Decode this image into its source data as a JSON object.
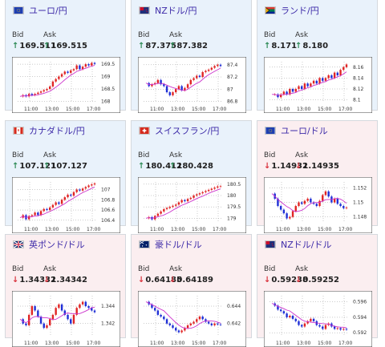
{
  "arrows": {
    "up": "↑",
    "down": "↓"
  },
  "colors": {
    "up_card_bg": "#e9f2fb",
    "down_card_bg": "#fbeef0",
    "title_color": "#3d2aa8",
    "candle_up": "#e02424",
    "candle_down": "#1f2fd6",
    "ma_line": "#cc33cc"
  },
  "labels": {
    "bid": "Bid",
    "ask": "Ask"
  },
  "pairs": [
    {
      "name": "ユーロ/円",
      "flag": "eu-jp-flag-icon",
      "direction": "up",
      "bid": "169.511",
      "ask": "169.515",
      "chart": {
        "xticks": [
          "11:00",
          "13:00",
          "15:00",
          "17:00"
        ],
        "yticks": [
          "169.5",
          "169",
          "168.5",
          "168"
        ],
        "ymin": 167.95,
        "ymax": 169.6,
        "trend": [
          168.2,
          168.25,
          168.2,
          168.3,
          168.25,
          168.3,
          168.35,
          168.4,
          168.45,
          168.5,
          168.6,
          168.8,
          168.9,
          169.0,
          169.1,
          169.2,
          169.15,
          169.25,
          169.3,
          169.45,
          169.3,
          169.4,
          169.5,
          169.45,
          169.55,
          169.51
        ]
      }
    },
    {
      "name": "NZドル/円",
      "flag": "nz-jp-flag-icon",
      "direction": "up",
      "bid": "87.375",
      "ask": "87.382",
      "chart": {
        "xticks": [
          "11:00",
          "13:00",
          "15:00",
          "17:00"
        ],
        "yticks": [
          "87.4",
          "87.2",
          "87",
          "86.8"
        ],
        "ymin": 86.78,
        "ymax": 87.45,
        "trend": [
          87.1,
          87.05,
          87.08,
          87.1,
          87.15,
          87.08,
          87.05,
          86.95,
          86.9,
          86.95,
          87.0,
          87.05,
          86.98,
          87.02,
          87.08,
          87.15,
          87.18,
          87.22,
          87.2,
          87.28,
          87.3,
          87.32,
          87.35,
          87.38,
          87.4,
          87.38
        ]
      }
    },
    {
      "name": "ランド/円",
      "flag": "za-jp-flag-icon",
      "direction": "up",
      "bid": "8.171",
      "ask": "8.180",
      "chart": {
        "xticks": [
          "11:00",
          "13:00",
          "15:00",
          "17:00"
        ],
        "yticks": [
          "8.16",
          "8.14",
          "8.12",
          "8.1"
        ],
        "ymin": 8.095,
        "ymax": 8.17,
        "trend": [
          8.11,
          8.11,
          8.105,
          8.11,
          8.115,
          8.11,
          8.12,
          8.115,
          8.12,
          8.125,
          8.12,
          8.13,
          8.125,
          8.13,
          8.135,
          8.13,
          8.14,
          8.135,
          8.14,
          8.145,
          8.14,
          8.15,
          8.145,
          8.155,
          8.16,
          8.165
        ]
      }
    },
    {
      "name": "カナダドル/円",
      "flag": "ca-jp-flag-icon",
      "direction": "up",
      "bid": "107.121",
      "ask": "107.127",
      "chart": {
        "xticks": [
          "11:00",
          "13:00",
          "15:00",
          "17:00"
        ],
        "yticks": [
          "107",
          "106.8",
          "106.6",
          "106.4"
        ],
        "ymin": 106.35,
        "ymax": 107.15,
        "trend": [
          106.45,
          106.5,
          106.42,
          106.48,
          106.5,
          106.55,
          106.5,
          106.58,
          106.62,
          106.6,
          106.65,
          106.7,
          106.75,
          106.72,
          106.8,
          106.85,
          106.9,
          106.88,
          106.95,
          107.0,
          106.98,
          107.02,
          107.05,
          107.08,
          107.1,
          107.12
        ]
      }
    },
    {
      "name": "スイスフラン/円",
      "flag": "ch-jp-flag-icon",
      "direction": "up",
      "bid": "180.412",
      "ask": "180.428",
      "chart": {
        "xticks": [
          "11:00",
          "13:00",
          "15:00",
          "17:00"
        ],
        "yticks": [
          "180.5",
          "180",
          "179.5",
          "179"
        ],
        "ymin": 178.8,
        "ymax": 180.6,
        "trend": [
          179.0,
          179.05,
          178.95,
          179.1,
          179.2,
          179.3,
          179.4,
          179.45,
          179.5,
          179.55,
          179.6,
          179.7,
          179.8,
          179.75,
          179.85,
          179.9,
          180.0,
          180.05,
          180.1,
          180.15,
          180.2,
          180.25,
          180.3,
          180.35,
          180.4,
          180.41
        ]
      }
    },
    {
      "name": "ユーロ/ドル",
      "flag": "eu-us-flag-icon",
      "direction": "down",
      "bid": "1.14932",
      "ask": "1.14935",
      "chart": {
        "xticks": [
          "11:00",
          "13:00",
          "15:00",
          "17:00"
        ],
        "yticks": [
          "1.152",
          "1.15",
          "1.148"
        ],
        "ymin": 1.1472,
        "ymax": 1.1528,
        "trend": [
          1.1512,
          1.1505,
          1.1495,
          1.149,
          1.1485,
          1.1478,
          1.148,
          1.1488,
          1.1495,
          1.15,
          1.1498,
          1.1502,
          1.1505,
          1.15,
          1.1498,
          1.1495,
          1.1502,
          1.151,
          1.1515,
          1.1508,
          1.15,
          1.1505,
          1.1498,
          1.1495,
          1.1492,
          1.1493
        ]
      }
    },
    {
      "name": "英ポンド/ドル",
      "flag": "gb-us-flag-icon",
      "direction": "down",
      "bid": "1.34332",
      "ask": "1.34342",
      "chart": {
        "xticks": [
          "11:00",
          "13:00",
          "15:00",
          "17:00"
        ],
        "yticks": [
          "1.344",
          "1.342"
        ],
        "ymin": 1.3405,
        "ymax": 1.3452,
        "trend": [
          1.3425,
          1.342,
          1.3418,
          1.343,
          1.344,
          1.3435,
          1.3428,
          1.342,
          1.3415,
          1.3418,
          1.3425,
          1.343,
          1.3438,
          1.3442,
          1.3435,
          1.343,
          1.3425,
          1.342,
          1.343,
          1.3438,
          1.3442,
          1.3445,
          1.344,
          1.3438,
          1.3435,
          1.3433
        ]
      }
    },
    {
      "name": "豪ドル/ドル",
      "flag": "au-us-flag-icon",
      "direction": "down",
      "bid": "0.64185",
      "ask": "0.64189",
      "chart": {
        "xticks": [
          "11:00",
          "13:00",
          "15:00",
          "17:00"
        ],
        "yticks": [
          "0.644",
          "0.642"
        ],
        "ymin": 0.6405,
        "ymax": 0.6452,
        "trend": [
          0.6445,
          0.6442,
          0.6438,
          0.6435,
          0.643,
          0.6428,
          0.6425,
          0.642,
          0.6418,
          0.6415,
          0.6412,
          0.641,
          0.6412,
          0.6415,
          0.6418,
          0.642,
          0.6422,
          0.6425,
          0.6428,
          0.6425,
          0.6422,
          0.642,
          0.6418,
          0.642,
          0.6419,
          0.64185
        ]
      }
    },
    {
      "name": "NZドル/ドル",
      "flag": "nz-us-flag-icon",
      "direction": "down",
      "bid": "0.59238",
      "ask": "0.59252",
      "chart": {
        "xticks": [
          "11:00",
          "13:00",
          "15:00",
          "17:00"
        ],
        "yticks": [
          "0.596",
          "0.594",
          "0.592"
        ],
        "ymin": 0.5915,
        "ymax": 0.5968,
        "trend": [
          0.5958,
          0.5955,
          0.595,
          0.5948,
          0.5945,
          0.594,
          0.5942,
          0.5938,
          0.5935,
          0.593,
          0.5928,
          0.5932,
          0.5935,
          0.5938,
          0.5935,
          0.593,
          0.5928,
          0.5925,
          0.593,
          0.5932,
          0.5928,
          0.5925,
          0.5926,
          0.5924,
          0.5925,
          0.5924
        ]
      }
    }
  ]
}
